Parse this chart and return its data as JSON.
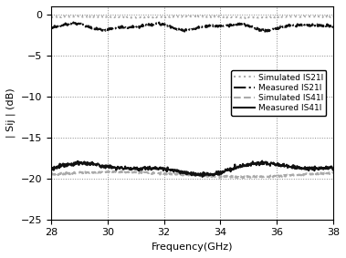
{
  "xlabel": "Frequency(GHz)",
  "ylabel": "| Sij | (dB)",
  "xlim": [
    28,
    38
  ],
  "ylim": [
    -25,
    1
  ],
  "yticks": [
    0,
    -5,
    -10,
    -15,
    -20,
    -25
  ],
  "xticks": [
    28,
    30,
    32,
    34,
    36,
    38
  ],
  "legend": [
    {
      "label": "Simulated IS21I",
      "color": "#aaaaaa",
      "linestyle": "dotted",
      "linewidth": 1.5
    },
    {
      "label": "Measured IS21I",
      "color": "#111111",
      "linestyle": "dashdot",
      "linewidth": 1.5
    },
    {
      "label": "Simulated IS41I",
      "color": "#aaaaaa",
      "linestyle": "dashed",
      "linewidth": 1.5
    },
    {
      "label": "Measured IS41I",
      "color": "#111111",
      "linestyle": "solid",
      "linewidth": 1.5
    }
  ],
  "freq_start": 28,
  "freq_end": 38,
  "num_points": 600,
  "background_color": "white",
  "grid_color": "#888888",
  "grid_linestyle": "dotted",
  "grid_linewidth": 0.7,
  "fontsize": 8
}
